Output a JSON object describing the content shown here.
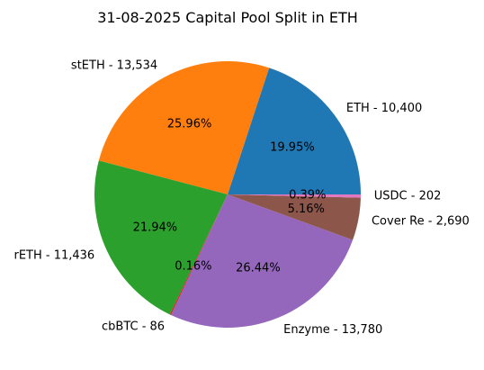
{
  "chart_data": {
    "type": "pie",
    "title": "31-08-2025 Capital Pool Split in ETH",
    "slices": [
      {
        "label": "ETH - 10,400",
        "value": 10400,
        "pct_label": "19.95%",
        "color": "#1f77b4"
      },
      {
        "label": "stETH - 13,534",
        "value": 13534,
        "pct_label": "25.96%",
        "color": "#ff7f0e"
      },
      {
        "label": "rETH - 11,436",
        "value": 11436,
        "pct_label": "21.94%",
        "color": "#2ca02c"
      },
      {
        "label": "cbBTC - 86",
        "value": 86,
        "pct_label": "0.16%",
        "color": "#d62728"
      },
      {
        "label": "Enzyme - 13,780",
        "value": 13780,
        "pct_label": "26.44%",
        "color": "#9467bd"
      },
      {
        "label": "Cover Re - 2,690",
        "value": 2690,
        "pct_label": "5.16%",
        "color": "#8c564b"
      },
      {
        "label": "USDC - 202",
        "value": 202,
        "pct_label": "0.39%",
        "color": "#e377c2"
      }
    ],
    "start_angle_deg": 0,
    "direction": "counterclockwise",
    "legend": "none"
  }
}
